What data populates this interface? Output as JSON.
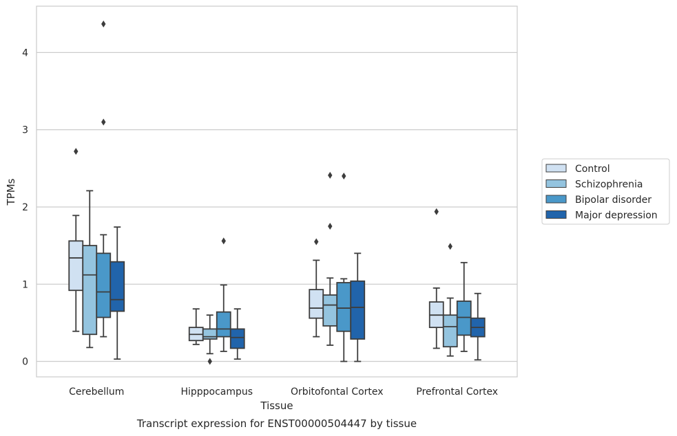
{
  "caption": "Transcript expression for ENST00000504447 by tissue",
  "chart_data": {
    "type": "box",
    "xlabel": "Tissue",
    "ylabel": "TPMs",
    "ylim": [
      -0.2,
      4.6
    ],
    "yticks": [
      0,
      1,
      2,
      3,
      4
    ],
    "grid": "horizontal",
    "legend_position": "right",
    "categories": [
      "Cerebellum",
      "Hipppocampus",
      "Orbitofontal Cortex",
      "Prefrontal Cortex"
    ],
    "series": [
      {
        "name": "Control",
        "color": "#d0e1f2",
        "boxes": [
          {
            "whisker_low": 0.39,
            "q1": 0.92,
            "median": 1.34,
            "q3": 1.56,
            "whisker_high": 1.89,
            "outliers": [
              2.72
            ]
          },
          {
            "whisker_low": 0.22,
            "q1": 0.27,
            "median": 0.35,
            "q3": 0.44,
            "whisker_high": 0.68,
            "outliers": []
          },
          {
            "whisker_low": 0.32,
            "q1": 0.56,
            "median": 0.69,
            "q3": 0.93,
            "whisker_high": 1.31,
            "outliers": [
              1.55
            ]
          },
          {
            "whisker_low": 0.17,
            "q1": 0.44,
            "median": 0.6,
            "q3": 0.77,
            "whisker_high": 0.95,
            "outliers": [
              1.94
            ]
          }
        ]
      },
      {
        "name": "Schizophrenia",
        "color": "#94c4df",
        "boxes": [
          {
            "whisker_low": 0.18,
            "q1": 0.35,
            "median": 1.12,
            "q3": 1.5,
            "whisker_high": 2.21,
            "outliers": []
          },
          {
            "whisker_low": 0.1,
            "q1": 0.29,
            "median": 0.32,
            "q3": 0.42,
            "whisker_high": 0.6,
            "outliers": [
              0.0
            ]
          },
          {
            "whisker_low": 0.21,
            "q1": 0.46,
            "median": 0.73,
            "q3": 0.86,
            "whisker_high": 1.08,
            "outliers": [
              1.75,
              2.41
            ]
          },
          {
            "whisker_low": 0.07,
            "q1": 0.19,
            "median": 0.45,
            "q3": 0.6,
            "whisker_high": 0.82,
            "outliers": [
              1.49
            ]
          }
        ]
      },
      {
        "name": "Bipolar disorder",
        "color": "#4a98c9",
        "boxes": [
          {
            "whisker_low": 0.32,
            "q1": 0.57,
            "median": 0.9,
            "q3": 1.4,
            "whisker_high": 1.64,
            "outliers": [
              3.1,
              4.37
            ]
          },
          {
            "whisker_low": 0.13,
            "q1": 0.32,
            "median": 0.42,
            "q3": 0.64,
            "whisker_high": 0.99,
            "outliers": [
              1.56
            ]
          },
          {
            "whisker_low": 0.0,
            "q1": 0.39,
            "median": 0.69,
            "q3": 1.02,
            "whisker_high": 1.07,
            "outliers": [
              2.4
            ]
          },
          {
            "whisker_low": 0.13,
            "q1": 0.34,
            "median": 0.57,
            "q3": 0.78,
            "whisker_high": 1.28,
            "outliers": []
          }
        ]
      },
      {
        "name": "Major depression",
        "color": "#2164ab",
        "boxes": [
          {
            "whisker_low": 0.03,
            "q1": 0.65,
            "median": 0.8,
            "q3": 1.29,
            "whisker_high": 1.74,
            "outliers": []
          },
          {
            "whisker_low": 0.03,
            "q1": 0.17,
            "median": 0.31,
            "q3": 0.42,
            "whisker_high": 0.68,
            "outliers": []
          },
          {
            "whisker_low": 0.0,
            "q1": 0.29,
            "median": 0.7,
            "q3": 1.04,
            "whisker_high": 1.4,
            "outliers": []
          },
          {
            "whisker_low": 0.02,
            "q1": 0.32,
            "median": 0.44,
            "q3": 0.56,
            "whisker_high": 0.88,
            "outliers": []
          }
        ]
      }
    ]
  }
}
